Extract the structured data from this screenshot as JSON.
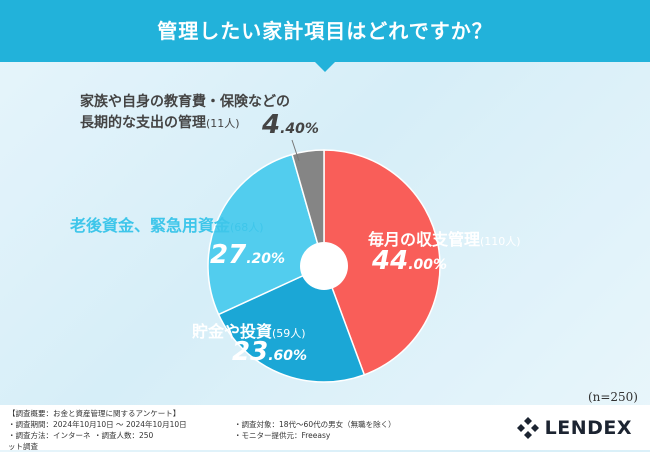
{
  "title": "管理したい家計項目はどれですか？",
  "sample_size": "(n=250)",
  "chart_data": {
    "type": "pie",
    "categories": [
      "毎月の収支管理",
      "貯金や投資",
      "老後資金、緊急用資金",
      "家族や自身の教育費・保険などの長期的な支出の管理"
    ],
    "values": [
      44.0,
      23.6,
      27.2,
      4.4
    ],
    "counts": [
      110,
      59,
      68,
      11
    ],
    "colors": [
      "#f95e59",
      "#1ba7d6",
      "#52cdee",
      "#858585"
    ],
    "labels": [
      {
        "name": "毎月の収支管理",
        "count": "(110人)",
        "pct_int": "44",
        "pct_dec": ".00%"
      },
      {
        "name": "貯金や投資",
        "count": "(59人)",
        "pct_int": "23",
        "pct_dec": ".60%"
      },
      {
        "name": "老後資金、緊急用資金",
        "count": "(68人)",
        "pct_int": "27",
        "pct_dec": ".20%"
      },
      {
        "name_line1": "家族や自身の教育費・保険などの",
        "name_line2": "長期的な支出の管理",
        "count": "(11人)",
        "pct_int": "4",
        "pct_dec": ".40%"
      }
    ]
  },
  "footer": {
    "survey_title": "【調査概要：お金と資産管理に関するアンケート】",
    "period": "・調査期間：2024年10月10日 ～ 2024年10月10日",
    "target": "・調査対象：18代～60代の男女（無職を除く）",
    "method": "・調査方法：インターネット調査",
    "count": "・調査人数：250",
    "provider": "・モニター提供元：Freeasy",
    "logo": "LENDEX"
  }
}
